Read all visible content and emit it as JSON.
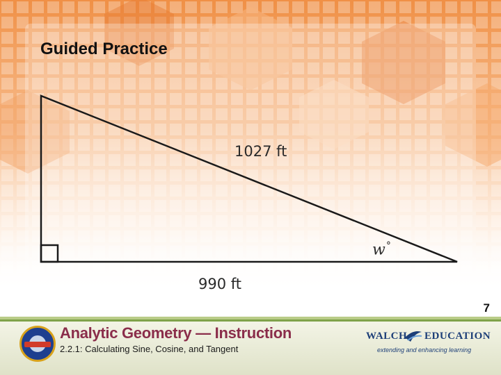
{
  "slide": {
    "title": "Guided Practice",
    "page_number": "7"
  },
  "diagram": {
    "hypotenuse_label": "1027 ft",
    "base_label": "990 ft",
    "angle_variable": "w",
    "angle_symbol": "°"
  },
  "footer": {
    "course_title": "Analytic Geometry — Instruction",
    "lesson_title": "2.2.1: Calculating Sine, Cosine, and Tangent",
    "seal_icon": "georgia-common-core-seal-icon",
    "logo_left": "WALCH",
    "logo_right": "EDUCATION",
    "logo_tagline": "extending and enhancing learning"
  },
  "colors": {
    "background_accent": "#f29a4e",
    "course_title": "#8a2d4a",
    "footer_stripe": "#7fa24a",
    "logo": "#1d3f78"
  }
}
